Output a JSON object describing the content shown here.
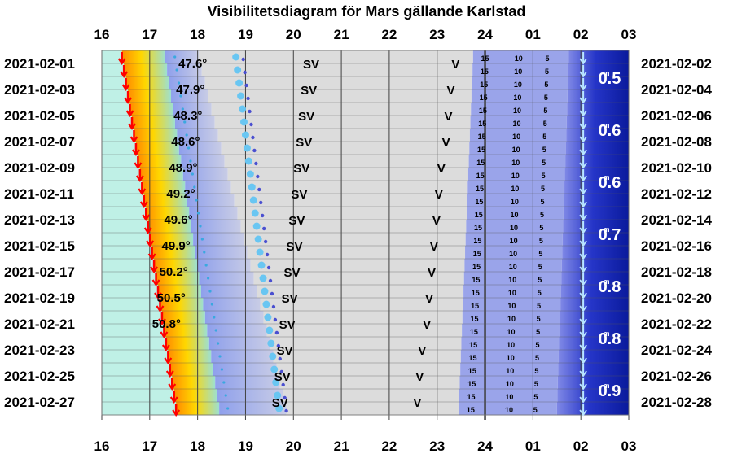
{
  "chart_data": {
    "type": "visibility-diagram",
    "title": "Visibilitetsdiagram för Mars gällande Karlstad",
    "hour_ticks": [
      "16",
      "17",
      "18",
      "19",
      "20",
      "21",
      "22",
      "23",
      "24",
      "01",
      "02",
      "03"
    ],
    "hours": [
      16,
      17,
      18,
      19,
      20,
      21,
      22,
      23,
      24,
      25,
      26,
      27
    ],
    "x_range": [
      16,
      27
    ],
    "dates_left": [
      "2021-02-01",
      "2021-02-03",
      "2021-02-05",
      "2021-02-07",
      "2021-02-09",
      "2021-02-11",
      "2021-02-13",
      "2021-02-15",
      "2021-02-17",
      "2021-02-19",
      "2021-02-21",
      "2021-02-23",
      "2021-02-25",
      "2021-02-27"
    ],
    "dates_right": [
      "2021-02-02",
      "2021-02-04",
      "2021-02-06",
      "2021-02-08",
      "2021-02-10",
      "2021-02-12",
      "2021-02-14",
      "2021-02-16",
      "2021-02-18",
      "2021-02-20",
      "2021-02-22",
      "2021-02-24",
      "2021-02-26",
      "2021-02-28"
    ],
    "altitude_labels": [
      "47.6°",
      "47.9°",
      "48.3°",
      "48.6°",
      "48.9°",
      "49.2°",
      "49.6°",
      "49.9°",
      "50.2°",
      "50.5°",
      "50.8°"
    ],
    "altitude_hours": [
      17.6,
      17.55,
      17.5,
      17.45,
      17.4,
      17.35,
      17.3,
      17.25,
      17.2,
      17.15,
      17.05
    ],
    "direction_labels": [
      "SV",
      "V"
    ],
    "sv_hours": [
      20.2,
      20.15,
      20.1,
      20.05,
      20.0,
      19.95,
      19.9,
      19.85,
      19.8,
      19.75,
      19.7,
      19.65,
      19.6,
      19.55
    ],
    "v_hours": [
      23.3,
      23.2,
      23.15,
      23.1,
      23.0,
      22.95,
      22.9,
      22.85,
      22.8,
      22.75,
      22.7,
      22.6,
      22.55,
      22.5
    ],
    "altitude_contours": [
      "15",
      "10",
      "5"
    ],
    "contour_hours": {
      "15": [
        24.0,
        23.7
      ],
      "10": [
        24.7,
        24.5
      ],
      "5": [
        25.3,
        25.05
      ]
    },
    "magnitudes": [
      "0.5",
      "0.6",
      "0.6",
      "0.7",
      "0.8",
      "0.8",
      "0.9"
    ],
    "magnitude_label_hours": 26.6,
    "mars_transit_hours": [
      18.8,
      19.7
    ],
    "sunset_hours": [
      16.42,
      17.55
    ],
    "mars_set_hour": 26.05,
    "colors": {
      "twilight_start": "#bff0e6",
      "sun_arrow": "#ff0000",
      "sun_band_orange": "#ff8c00",
      "sun_band_yellow": "#ffd700",
      "twilight_blue": "#a9b7f0",
      "night_area": "#dcdcdc",
      "mars_area": "#6a6fd8",
      "deep_night": "#00138a",
      "mars_dot": "#69c6f2",
      "mars_set_arrow": "#b9e6ff",
      "grid": "#404040"
    }
  }
}
